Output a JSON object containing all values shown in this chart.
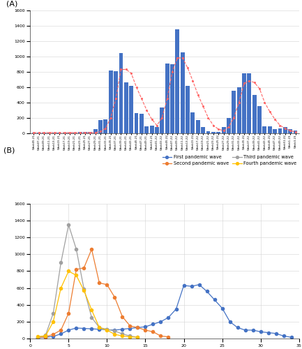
{
  "panel_A": {
    "weeks": [
      "Week05-21",
      "Week07-21",
      "Week09-21",
      "Week11-21",
      "Week13-21",
      "Week15-21",
      "Week17-21",
      "Week19-21",
      "Week21-21",
      "Week23-21",
      "Week25-21",
      "Week27-21",
      "Week29-21",
      "Week31-21",
      "Week33-21",
      "Week35-21",
      "Week37-21",
      "Week39-21",
      "Week41-21",
      "Week43-21",
      "Week45-21",
      "Week47-21",
      "Week49-21",
      "Week51-21",
      "Week01-22",
      "Week03-22",
      "Week05-22",
      "Week07-22",
      "Week09-22",
      "Week11-22",
      "Week13-22",
      "Week15-22",
      "Week17-22",
      "Week19-22",
      "Week21-22",
      "Week23-22",
      "Week25-22",
      "Week27-22",
      "Week29-22",
      "Week31-22",
      "Week33-22",
      "Week35-22",
      "Week37-22",
      "Week39-22",
      "Week41-22",
      "Week43-22",
      "Week45-22",
      "Week47-22",
      "Week49-22",
      "Week51-22",
      "Week1-23",
      "Week3-23"
    ],
    "bar_values": [
      5,
      8,
      3,
      5,
      8,
      5,
      5,
      5,
      8,
      10,
      12,
      15,
      55,
      170,
      180,
      820,
      810,
      1040,
      660,
      620,
      260,
      250,
      90,
      100,
      75,
      330,
      910,
      900,
      1350,
      1050,
      620,
      270,
      165,
      80,
      20,
      15,
      10,
      80,
      200,
      550,
      600,
      780,
      780,
      500,
      350,
      90,
      85,
      50,
      60,
      75,
      55,
      35
    ],
    "curve_values": [
      5,
      5,
      5,
      5,
      5,
      5,
      5,
      5,
      5,
      5,
      5,
      5,
      5,
      20,
      60,
      200,
      450,
      830,
      830,
      780,
      600,
      450,
      300,
      180,
      100,
      200,
      450,
      800,
      980,
      980,
      850,
      680,
      500,
      350,
      200,
      100,
      50,
      30,
      80,
      200,
      400,
      650,
      680,
      660,
      580,
      400,
      280,
      180,
      100,
      60,
      30,
      15
    ],
    "bar_color": "#4472C4",
    "curve_color": "#FF6666",
    "ylim": [
      0,
      1600
    ],
    "yticks": [
      0,
      200,
      400,
      600,
      800,
      1000,
      1200,
      1400,
      1600
    ]
  },
  "panel_B": {
    "wave1_x": [
      1,
      2,
      3,
      4,
      5,
      6,
      7,
      8,
      9,
      10,
      11,
      12,
      13,
      14,
      15,
      16,
      17,
      18,
      19,
      20,
      21,
      22,
      23,
      24,
      25,
      26,
      27,
      28,
      29,
      30,
      31,
      32,
      33,
      34
    ],
    "wave1_y": [
      10,
      15,
      25,
      55,
      100,
      125,
      120,
      115,
      110,
      105,
      100,
      110,
      120,
      130,
      140,
      170,
      200,
      250,
      350,
      630,
      620,
      640,
      560,
      460,
      360,
      200,
      130,
      100,
      100,
      80,
      70,
      60,
      30,
      15
    ],
    "wave2_x": [
      1,
      2,
      3,
      4,
      5,
      6,
      7,
      8,
      9,
      10,
      11,
      12,
      13,
      14,
      15,
      16,
      17,
      18
    ],
    "wave2_y": [
      10,
      20,
      50,
      100,
      300,
      820,
      840,
      1060,
      660,
      640,
      490,
      260,
      150,
      130,
      100,
      80,
      30,
      20
    ],
    "wave3_x": [
      1,
      2,
      3,
      4,
      5,
      6,
      7,
      8,
      9,
      10,
      11,
      12,
      13,
      14
    ],
    "wave3_y": [
      10,
      40,
      300,
      900,
      1350,
      1060,
      590,
      250,
      130,
      110,
      90,
      55,
      30,
      15
    ],
    "wave4_x": [
      1,
      2,
      3,
      4,
      5,
      6,
      7,
      8,
      9,
      10,
      11,
      12,
      13,
      14
    ],
    "wave4_y": [
      25,
      30,
      200,
      600,
      800,
      750,
      570,
      340,
      130,
      100,
      50,
      30,
      20,
      15
    ],
    "wave1_color": "#4472C4",
    "wave2_color": "#ED7D31",
    "wave3_color": "#A0A0A0",
    "wave4_color": "#FFC000",
    "ylim": [
      0,
      1600
    ],
    "xlim": [
      0,
      35
    ],
    "yticks": [
      0,
      200,
      400,
      600,
      800,
      1000,
      1200,
      1400,
      1600
    ],
    "xticks": [
      0,
      5,
      10,
      15,
      20,
      25,
      30,
      35
    ],
    "legend_labels": [
      "First pandemic wave",
      "Second pandemic wave",
      "Third pandemic wave",
      "Fourth pandemic wave"
    ]
  }
}
